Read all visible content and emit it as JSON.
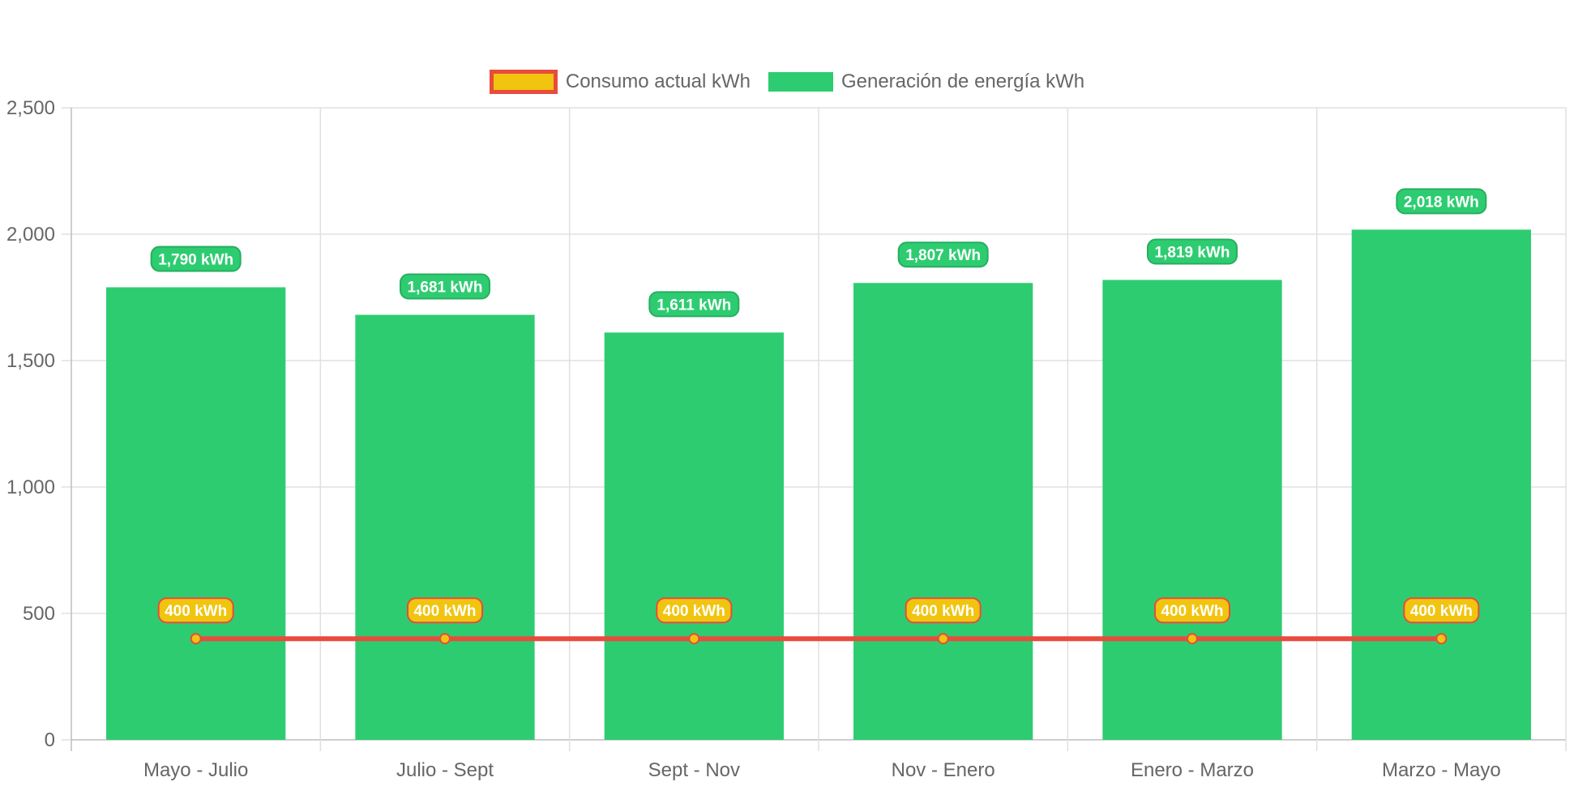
{
  "chart_data": {
    "type": "bar",
    "categories": [
      "Mayo - Julio",
      "Julio - Sept",
      "Sept - Nov",
      "Nov - Enero",
      "Enero - Marzo",
      "Marzo - Mayo"
    ],
    "series": [
      {
        "name": "Consumo actual kWh",
        "type": "line",
        "values": [
          400,
          400,
          400,
          400,
          400,
          400
        ],
        "labels": [
          "400 kWh",
          "400 kWh",
          "400 kWh",
          "400 kWh",
          "400 kWh",
          "400 kWh"
        ],
        "color": "#e74c3c",
        "fill": "#f1c40f"
      },
      {
        "name": "Generación de energía kWh",
        "type": "bar",
        "values": [
          1790,
          1681,
          1611,
          1807,
          1819,
          2018
        ],
        "labels": [
          "1,790 kWh",
          "1,681 kWh",
          "1,611 kWh",
          "1,807 kWh",
          "1,819 kWh",
          "2,018 kWh"
        ],
        "color": "#2ecc71",
        "label_color": "#27ae60"
      }
    ],
    "ylim": [
      0,
      2500
    ],
    "yticks": [
      0,
      500,
      1000,
      1500,
      2000,
      2500
    ],
    "ytick_labels": [
      "0",
      "500",
      "1,000",
      "1,500",
      "2,000",
      "2,500"
    ],
    "grid": true,
    "legend_position": "top-center"
  },
  "colors": {
    "grid": "#e0e0e0",
    "axis_text": "#666666"
  }
}
